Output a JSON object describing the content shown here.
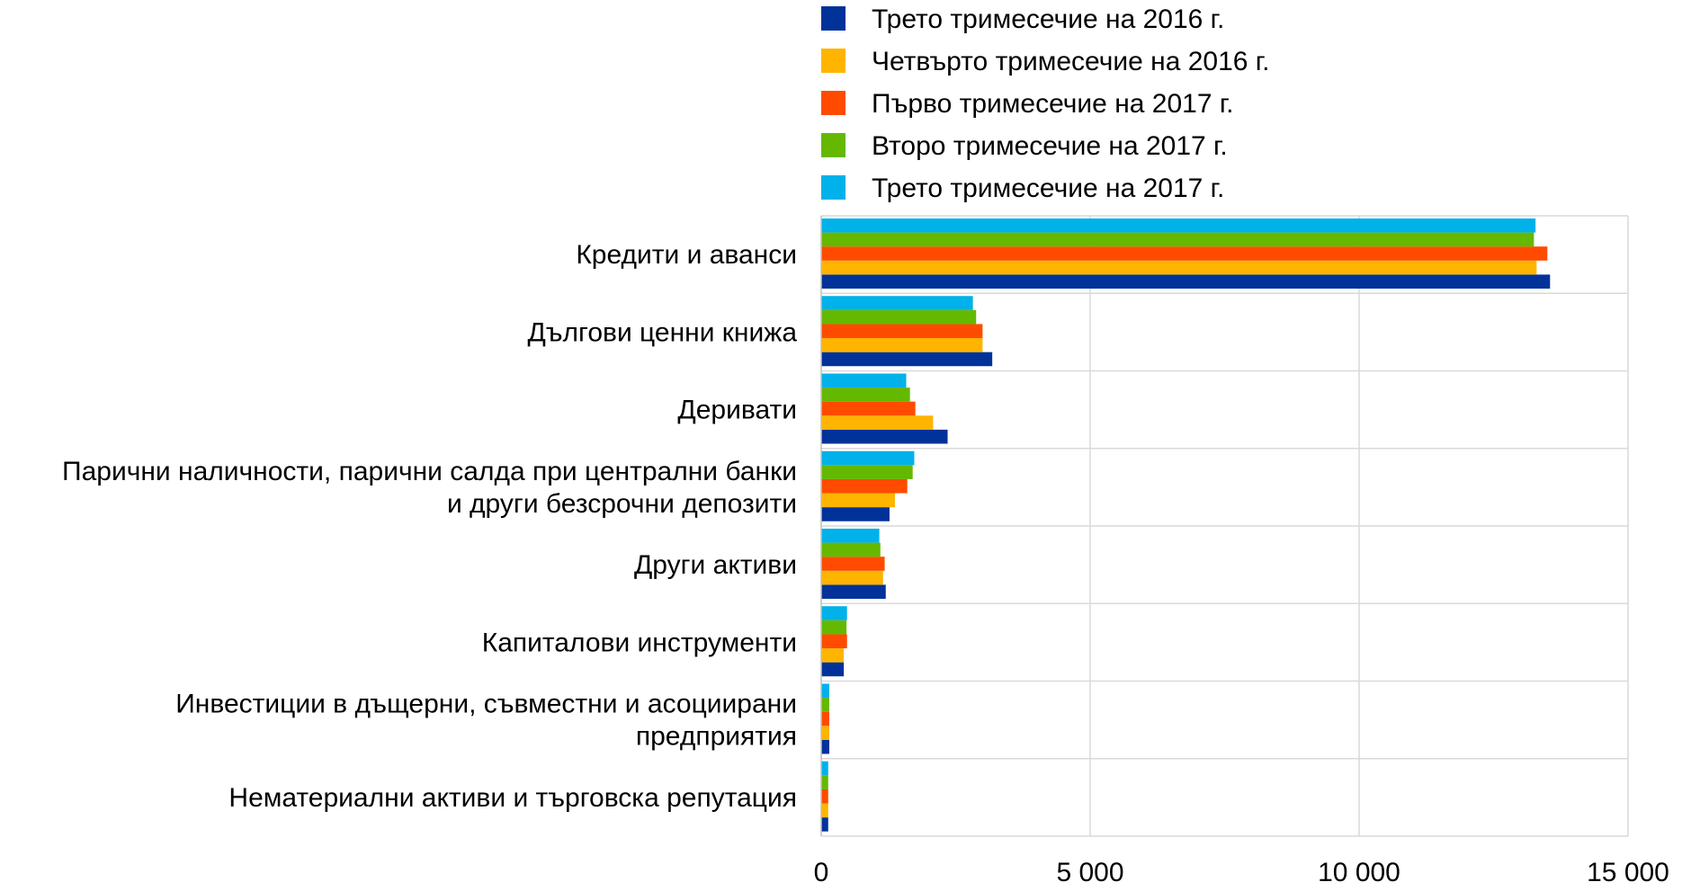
{
  "chart_data": {
    "type": "bar",
    "orientation": "horizontal",
    "categories": [
      [
        "Кредити и аванси"
      ],
      [
        "Дългови ценни книжа"
      ],
      [
        "Деривати"
      ],
      [
        "Парични наличности, парични салда при централни банки",
        "и други безсрочни депозити"
      ],
      [
        "Други активи"
      ],
      [
        "Капиталови инструменти"
      ],
      [
        "Инвестиции в дъщерни, съвместни и асоциирани",
        "предприятия"
      ],
      [
        "Нематериални активи и търговска репутация"
      ]
    ],
    "series": [
      {
        "name": "Трето тримесечие на 2016 г.",
        "color": "#003299",
        "values": [
          13550,
          3180,
          2350,
          1270,
          1200,
          420,
          150,
          130
        ]
      },
      {
        "name": "Четвърто тримесечие на 2016 г.",
        "color": "#FFB400",
        "values": [
          13300,
          3000,
          2080,
          1370,
          1150,
          420,
          150,
          130
        ]
      },
      {
        "name": "Първо тримесечие на 2017 г.",
        "color": "#FF4B00",
        "values": [
          13500,
          3000,
          1750,
          1600,
          1180,
          480,
          150,
          130
        ]
      },
      {
        "name": "Второ тримесечие на 2017 г.",
        "color": "#65B800",
        "values": [
          13250,
          2880,
          1650,
          1700,
          1100,
          470,
          150,
          130
        ]
      },
      {
        "name": "Трето тримесечие на 2017 г.",
        "color": "#00B1EA",
        "values": [
          13280,
          2820,
          1580,
          1730,
          1080,
          480,
          150,
          130
        ]
      }
    ],
    "xlim": [
      0,
      15000
    ],
    "xticks": [
      0,
      5000,
      10000,
      15000
    ],
    "xtick_labels": [
      "0",
      "5 000",
      "10 000",
      "15 000"
    ],
    "grid": true,
    "legend_position": "top"
  }
}
